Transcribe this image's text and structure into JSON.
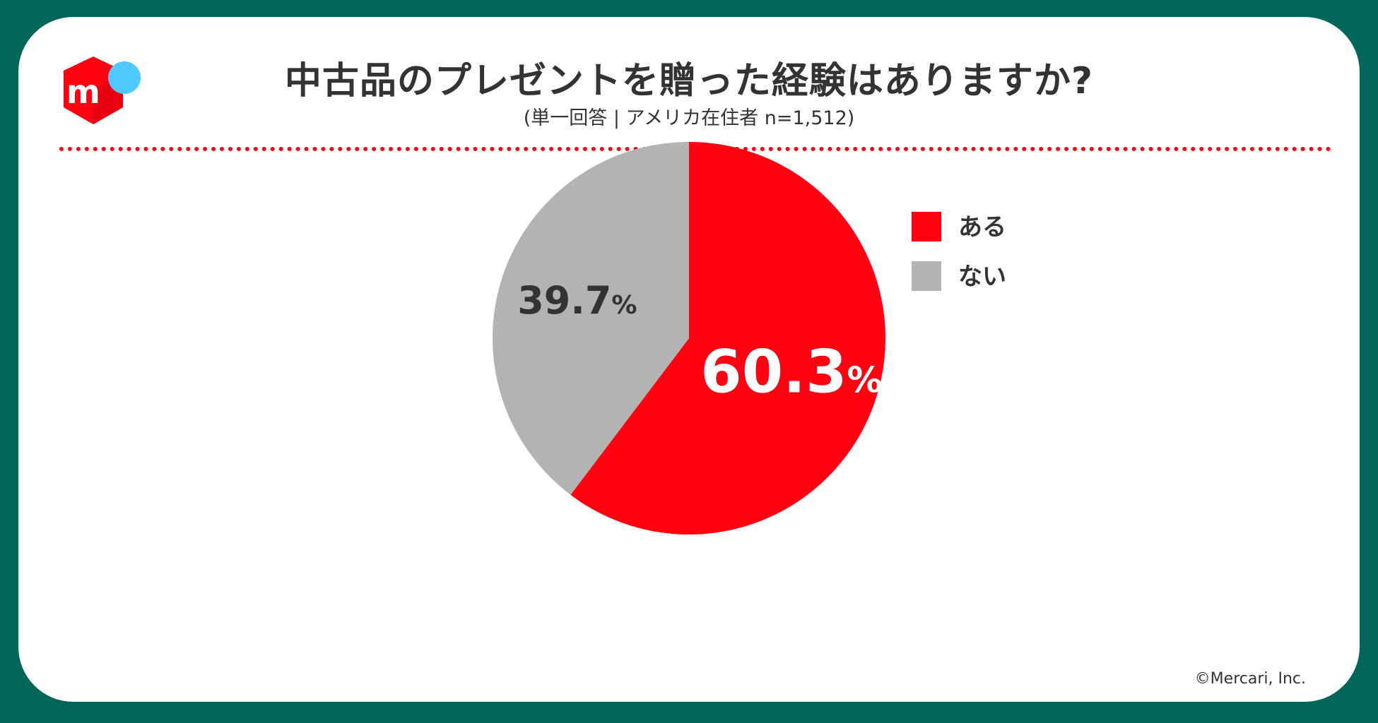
{
  "header": {
    "title": "中古品のプレゼントを贈った経験はありますか?",
    "subtitle": "(単一回答 | アメリカ在住者 n=1,512)"
  },
  "logo": {
    "name": "mercari-logo",
    "glyph": "m",
    "colors": {
      "box": "#ff0211",
      "dot": "#4dc9ff"
    }
  },
  "colors": {
    "frame": "#00665a",
    "accent": "#ff0211",
    "neutral": "#b3b3b3",
    "text": "#333333"
  },
  "chart_data": {
    "type": "pie",
    "title": "中古品のプレゼントを贈った経験はありますか?",
    "slices": [
      {
        "label": "ある",
        "value": 60.3,
        "display": "60.3",
        "color": "#ff0211",
        "label_color": "#ffffff"
      },
      {
        "label": "ない",
        "value": 39.7,
        "display": "39.7",
        "color": "#b3b3b3",
        "label_color": "#333333"
      }
    ],
    "percent_symbol": "%",
    "legend": {
      "position": "right",
      "items": [
        "ある",
        "ない"
      ]
    }
  },
  "footer": {
    "copyright": "©Mercari, Inc."
  }
}
